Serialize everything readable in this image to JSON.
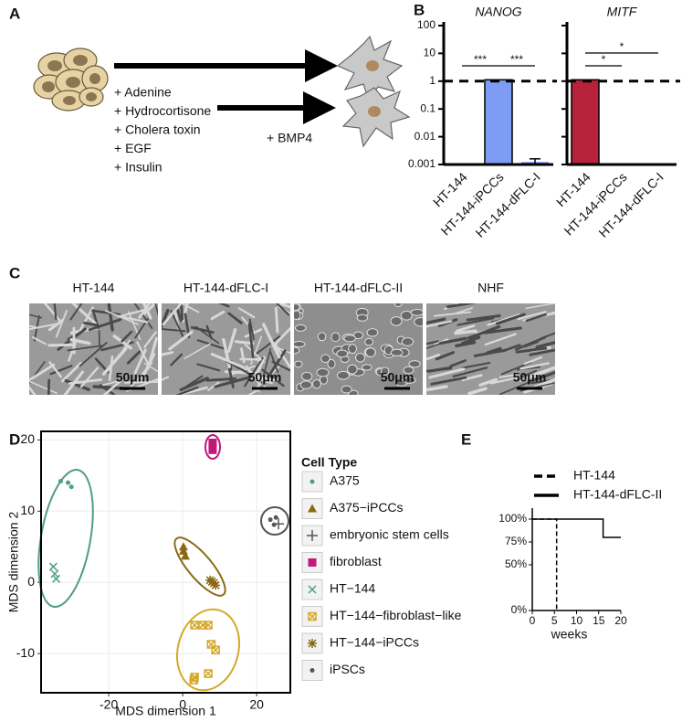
{
  "panel_labels": [
    "A",
    "B",
    "C",
    "D",
    "E"
  ],
  "panel_a": {
    "treatments": [
      "+ Adenine",
      "+ Hydrocortisone",
      "+ Cholera toxin",
      "+ EGF",
      "+ Insulin"
    ],
    "extra": "+ BMP4"
  },
  "panel_c": {
    "images": [
      {
        "label": "HT-144",
        "scale_bar": "50μm"
      },
      {
        "label": "HT-144-dFLC-I",
        "scale_bar": "50μm"
      },
      {
        "label": "HT-144-dFLC-II",
        "scale_bar": "50μm"
      },
      {
        "label": "NHF",
        "scale_bar": "50μm"
      }
    ]
  },
  "chart_data": [
    {
      "type": "bar",
      "title": "NANOG",
      "categories": [
        "HT-144",
        "HT-144-iPCCs",
        "HT-144-dFLC-I"
      ],
      "values": [
        0.001,
        1,
        0.0011
      ],
      "errors": [
        null,
        null,
        0.0005
      ],
      "colors": [
        "#6f8ef0",
        "#7f9cf5",
        "#6f8ef0"
      ],
      "log_scale": true,
      "ylim": [
        0.001,
        100
      ],
      "yticks": [
        100,
        10,
        1,
        0.1,
        0.01,
        0.001
      ],
      "reference_line": 1,
      "annotations": [
        "***",
        "***"
      ]
    },
    {
      "type": "bar",
      "title": "MITF",
      "categories": [
        "HT-144",
        "HT-144-iPCCs",
        "HT-144-dFLC-I"
      ],
      "values": [
        1,
        0.001,
        0.001
      ],
      "colors": [
        "#b5223a",
        "#e08a3c",
        "#e08a3c"
      ],
      "log_scale": true,
      "ylim": [
        0.001,
        100
      ],
      "reference_line": 1,
      "annotations": [
        "*",
        "*"
      ]
    },
    {
      "type": "scatter",
      "xlabel": "MDS dimension 1",
      "ylabel": "MDS dimension 2",
      "xlim": [
        -38.3,
        29.1
      ],
      "ylim": [
        -15.5,
        21.2
      ],
      "xticks": [
        -20,
        0,
        20
      ],
      "yticks": [
        -10,
        0,
        10,
        20
      ],
      "grid": true,
      "legend_title": "Cell Type",
      "series": [
        {
          "name": "A375",
          "color": "#4f9e7d",
          "marker": "circle",
          "x": [
            -33,
            -31,
            -30.1
          ],
          "y": [
            14.2,
            14,
            13.4
          ]
        },
        {
          "name": "A375−iPCCs",
          "color": "#8b6914",
          "marker": "triangle",
          "x": [
            0.2,
            0.2,
            0.7
          ],
          "y": [
            5,
            4.4,
            3.7
          ]
        },
        {
          "name": "embryonic stem cells",
          "color": "#555555",
          "marker": "plus",
          "x": [
            25.9
          ],
          "y": [
            8.2
          ]
        },
        {
          "name": "fibroblast",
          "color": "#c2187a",
          "marker": "square",
          "x": [
            8.1,
            8.1
          ],
          "y": [
            19.6,
            18.6
          ]
        },
        {
          "name": "HT−144",
          "color": "#4f9e7d",
          "marker": "cross",
          "x": [
            -35,
            -34.6,
            -34.2
          ],
          "y": [
            2.2,
            1.2,
            0.5
          ]
        },
        {
          "name": "HT−144−fibroblast−like",
          "color": "#d4a82a",
          "marker": "boxx",
          "x": [
            3.2,
            5.4,
            6.9,
            7.7,
            8.9,
            6.9,
            3.2,
            3
          ],
          "y": [
            -6,
            -6,
            -6,
            -8.7,
            -9.5,
            -12.8,
            -13.3,
            -13.7
          ]
        },
        {
          "name": "HT−144−iPCCs",
          "color": "#8b6914",
          "marker": "asterisk",
          "x": [
            7.4,
            7.9,
            8.4,
            8.9
          ],
          "y": [
            0.3,
            0.1,
            -0.1,
            -0.4
          ]
        },
        {
          "name": "iPSCs",
          "color": "#555555",
          "marker": "dot",
          "x": [
            23.7,
            25.2,
            24.7
          ],
          "y": [
            8.8,
            9.1,
            8.1
          ]
        }
      ]
    },
    {
      "type": "line",
      "xlabel": "weeks",
      "xlim": [
        0,
        20
      ],
      "xticks": [
        0,
        5,
        10,
        15,
        20
      ],
      "ylim": [
        0,
        112
      ],
      "yticks": [
        {
          "value": 0,
          "label": "0%"
        },
        {
          "value": 50,
          "label": "50%"
        },
        {
          "value": 75,
          "label": "75%"
        },
        {
          "value": 100,
          "label": "100%"
        }
      ],
      "series": [
        {
          "name": "HT-144",
          "style": "dashed",
          "x": [
            0,
            5.5,
            5.5
          ],
          "values": [
            100,
            100,
            0
          ]
        },
        {
          "name": "HT-144-dFLC-II",
          "style": "solid",
          "x": [
            0,
            16,
            16,
            20
          ],
          "values": [
            100,
            100,
            80,
            80
          ]
        }
      ]
    }
  ]
}
